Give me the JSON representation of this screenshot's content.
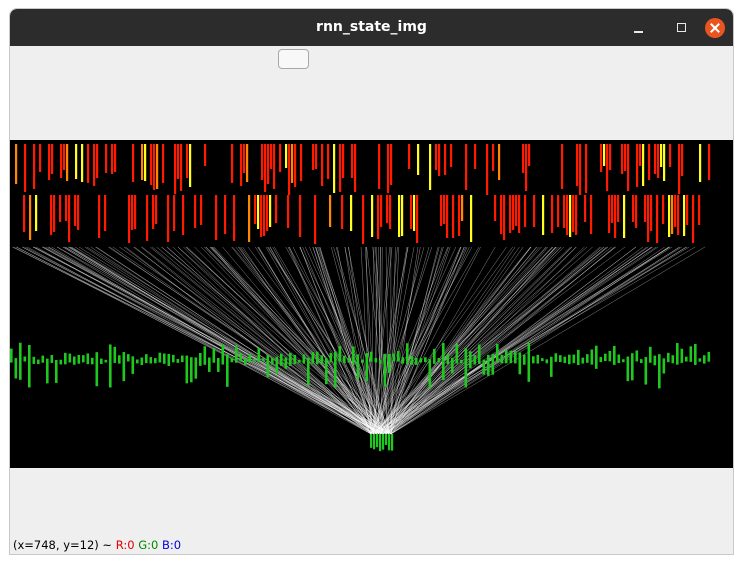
{
  "window": {
    "title": "rnn_state_img",
    "controls": {
      "minimize": "minimize-icon",
      "maximize": "maximize-icon",
      "close": "close-icon"
    }
  },
  "toolbar": {
    "button_label": ""
  },
  "visualization": {
    "colors": {
      "background": "#000000",
      "activation_red": "#ff1a00",
      "activation_yellow": "#ffff1a",
      "activation_orange": "#ff8800",
      "bars_green": "#1ec81e",
      "connections": "#ffffff"
    }
  },
  "status": {
    "coords": "(x=748, y=12) ~",
    "r": "R:0",
    "g": "G:0",
    "b": "B:0"
  }
}
